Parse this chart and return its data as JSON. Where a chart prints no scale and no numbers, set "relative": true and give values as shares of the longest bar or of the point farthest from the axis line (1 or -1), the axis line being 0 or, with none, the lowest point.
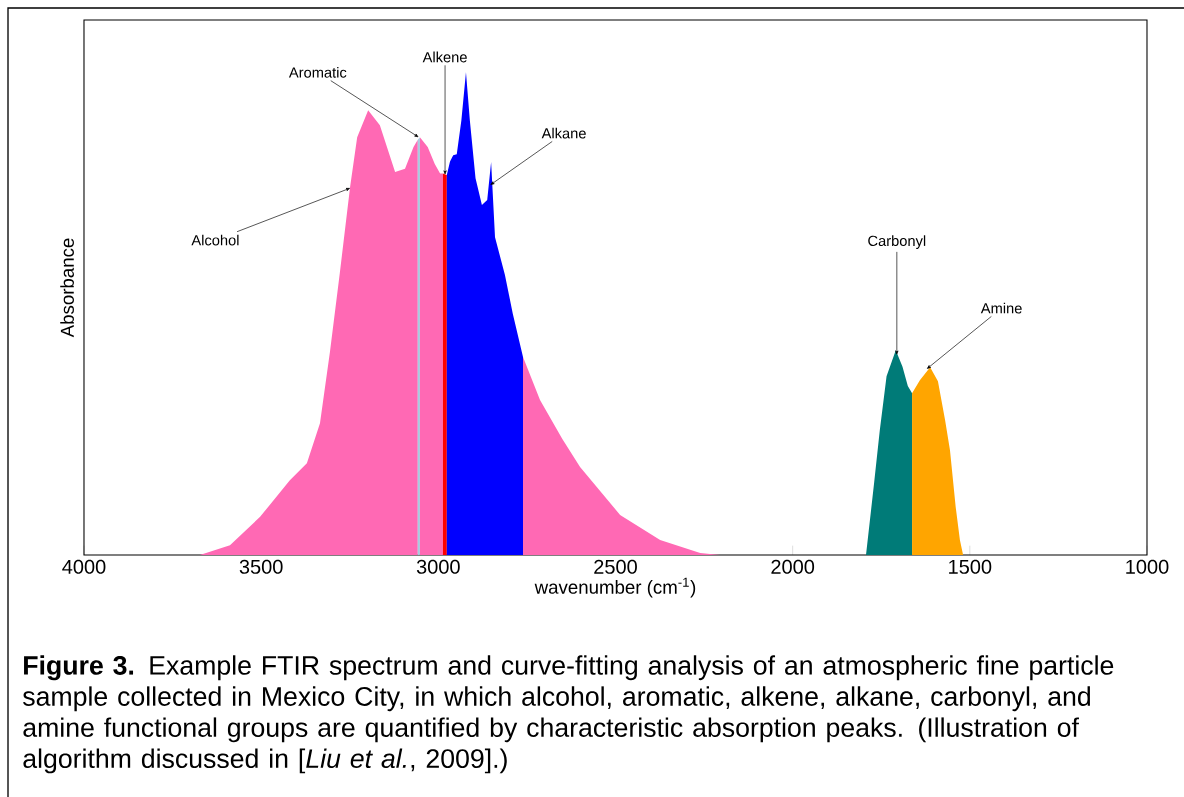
{
  "chart_data": {
    "type": "area",
    "relative": true,
    "xlabel": "wavenumber (cm$^{-1}$)",
    "ylabel": "Absorbance",
    "xlim": [
      4000,
      1000
    ],
    "xticks": [
      4000,
      3500,
      3000,
      2500,
      2000,
      1500,
      1000
    ],
    "series": [
      {
        "color": "#ff69b4",
        "x": [
          3673,
          3588,
          3503,
          3419,
          3371,
          3334,
          3306,
          3278,
          3249,
          3229,
          3198,
          3165,
          3122,
          3094,
          3070,
          3058
        ],
        "values": [
          0,
          0.02,
          0.079,
          0.155,
          0.19,
          0.273,
          0.42,
          0.584,
          0.762,
          0.865,
          0.921,
          0.89,
          0.793,
          0.8,
          0.845,
          0.86
        ]
      },
      {
        "color": "#a6cbe0",
        "x": [
          3058,
          3052
        ],
        "values": [
          0.86,
          0.865
        ]
      },
      {
        "color": "#ff69b4",
        "x": [
          3052,
          3030,
          3010,
          2995,
          2987
        ],
        "values": [
          0.865,
          0.845,
          0.81,
          0.79,
          0.79
        ]
      },
      {
        "color": "#ff0000",
        "x": [
          2987,
          2976
        ],
        "values": [
          0.79,
          0.787
        ]
      },
      {
        "color": "#0000ff",
        "x": [
          2976,
          2967,
          2958,
          2948,
          2935,
          2922,
          2911,
          2895,
          2877,
          2862,
          2851,
          2840,
          2812,
          2790,
          2761
        ],
        "values": [
          0.787,
          0.815,
          0.828,
          0.83,
          0.9,
          1,
          0.9,
          0.78,
          0.725,
          0.735,
          0.814,
          0.658,
          0.58,
          0.5,
          0.41
        ]
      },
      {
        "color": "#ff69b4",
        "x": [
          2761,
          2713,
          2650,
          2600,
          2487,
          2374,
          2261,
          2205
        ],
        "values": [
          0.41,
          0.321,
          0.24,
          0.182,
          0.083,
          0.031,
          0.004,
          0
        ]
      },
      {
        "color": "#007b78",
        "x": [
          1793,
          1770,
          1754,
          1735,
          1709,
          1690,
          1675,
          1663
        ],
        "values": [
          0,
          0.15,
          0.259,
          0.37,
          0.424,
          0.39,
          0.35,
          0.335
        ]
      },
      {
        "color": "#ffa500",
        "x": [
          1663,
          1641,
          1612,
          1590,
          1570,
          1556,
          1540,
          1528,
          1519
        ],
        "values": [
          0.335,
          0.362,
          0.389,
          0.36,
          0.28,
          0.217,
          0.1,
          0.031,
          0
        ]
      }
    ],
    "annotations": [
      {
        "text": "Aromatic",
        "x": 3055,
        "y": 0.865
      },
      {
        "text": "Alkene",
        "x": 2981,
        "y": 0.787
      },
      {
        "text": "Alkane",
        "x": 2854,
        "y": 0.766
      },
      {
        "text": "Alcohol",
        "x": 3248,
        "y": 0.76
      },
      {
        "text": "Carbonyl",
        "x": 1706,
        "y": 0.414
      },
      {
        "text": "Amine",
        "x": 1622,
        "y": 0.385
      },
      "**Figure 3.** Example FTIR spectrum and curve-fitting analysis of an atmospheric fine particle sample collected in Mexico City, in which alcohol, aromatic, alkene, alkane, carbonyl, and amine functional groups are quantified by characteristic absorption peaks. (Illustration of algorithm discussed in [*Liu et al.*, 2009].)"
    ]
  }
}
